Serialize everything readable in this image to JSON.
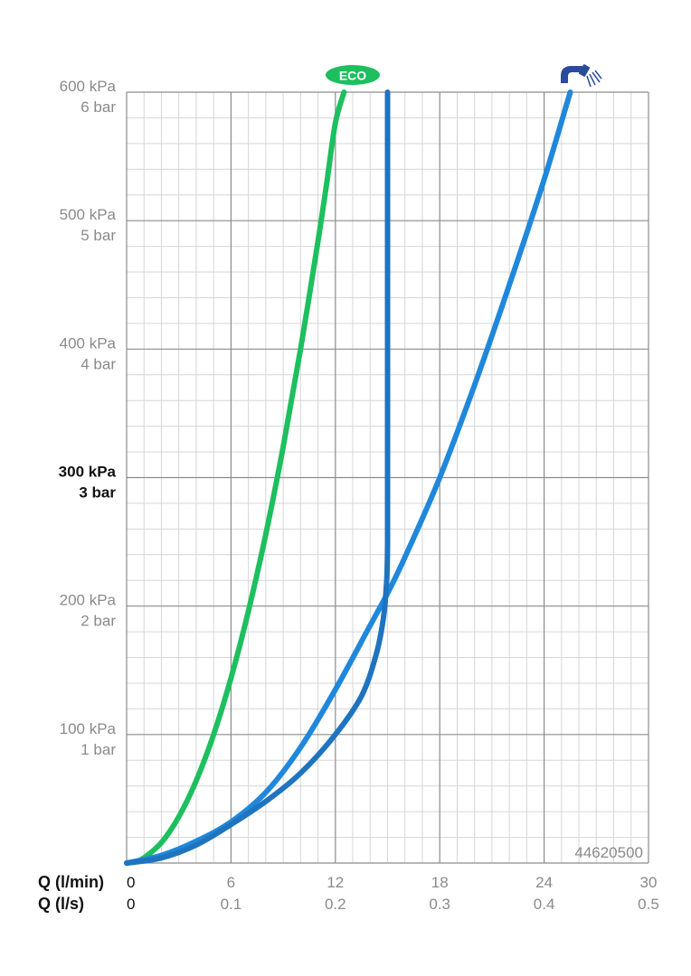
{
  "chart_data": {
    "type": "line",
    "title": "",
    "id_label": "44620500",
    "xlabel_primary": "Q (l/min)",
    "xlabel_secondary": "Q (l/s)",
    "xlim": [
      0,
      30
    ],
    "ylim": [
      0,
      600
    ],
    "x_ticks_primary": [
      "0",
      "6",
      "12",
      "18",
      "24",
      "30"
    ],
    "x_ticks_secondary": [
      "0",
      "0.1",
      "0.2",
      "0.3",
      "0.4",
      "0.5"
    ],
    "x_tick_values": [
      0,
      6,
      12,
      18,
      24,
      30
    ],
    "y_ticks": [
      {
        "value": 100,
        "kpa": "100 kPa",
        "bar": "1 bar",
        "bold": false
      },
      {
        "value": 200,
        "kpa": "200 kPa",
        "bar": "2 bar",
        "bold": false
      },
      {
        "value": 300,
        "kpa": "300 kPa",
        "bar": "3 bar",
        "bold": true
      },
      {
        "value": 400,
        "kpa": "400 kPa",
        "bar": "4 bar",
        "bold": false
      },
      {
        "value": 500,
        "kpa": "500 kPa",
        "bar": "5 bar",
        "bold": false
      },
      {
        "value": 600,
        "kpa": "600 kPa",
        "bar": "6 bar",
        "bold": false
      }
    ],
    "grid": true,
    "eco_badge": "ECO",
    "icon": "shower-head-icon",
    "colors": {
      "eco": "#1dbf5e",
      "shower": "#1f88dc",
      "limiter": "#1f74bf",
      "major_grid": "#8c8c8c",
      "minor_grid": "#d6d6d6",
      "icon": "#2a4c9a"
    },
    "series": [
      {
        "key": "eco",
        "color": "#1dbf5e",
        "x": [
          0,
          0.5,
          1.0,
          2.0,
          3.0,
          4.0,
          5.0,
          6.0,
          7.0,
          8.0,
          9.0,
          10.0,
          11.0,
          11.5,
          12.0,
          12.5
        ],
        "y": [
          0,
          1,
          4,
          16,
          36,
          64,
          100,
          144,
          196,
          256,
          324,
          400,
          484,
          529,
          576,
          600
        ]
      },
      {
        "key": "shower",
        "color": "#1f88dc",
        "x": [
          0,
          2,
          4,
          6,
          8,
          10,
          12,
          14,
          15,
          16,
          18,
          20,
          22,
          24,
          25.5
        ],
        "y": [
          0,
          6,
          17,
          32,
          55,
          90,
          135,
          185,
          210,
          238,
          300,
          372,
          450,
          532,
          600
        ]
      },
      {
        "key": "limiter",
        "color": "#1f74bf",
        "x": [
          0,
          2,
          4,
          6,
          8,
          10,
          12,
          13.5,
          14.3,
          14.7,
          14.9,
          15.0,
          15.0,
          15.0
        ],
        "y": [
          0,
          4,
          14,
          30,
          48,
          70,
          100,
          130,
          160,
          185,
          210,
          250,
          400,
          600
        ]
      }
    ]
  }
}
